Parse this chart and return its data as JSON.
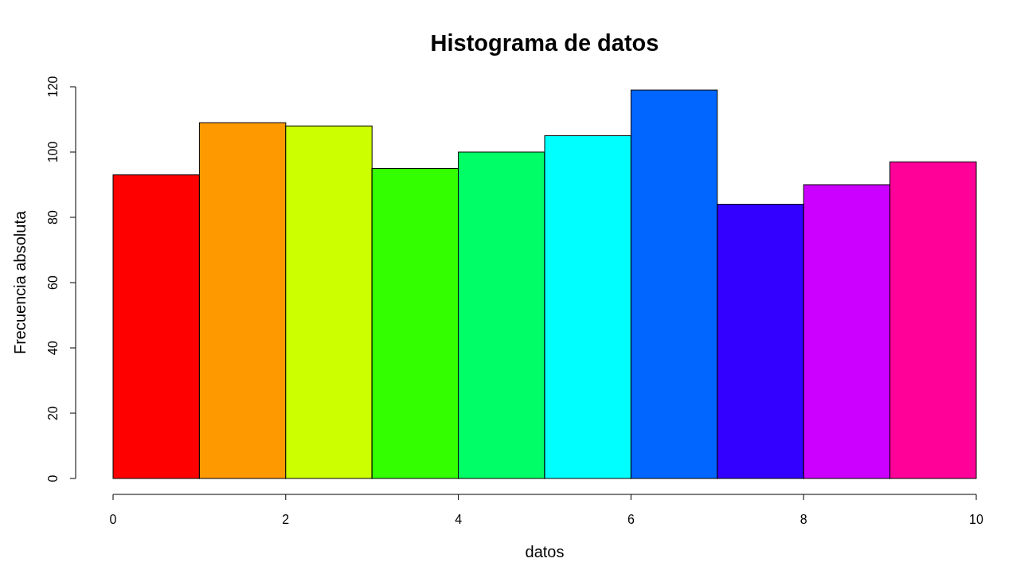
{
  "chart_data": {
    "type": "histogram",
    "title": "Histograma de datos",
    "xlabel": "datos",
    "ylabel": "Frecuencia absoluta",
    "bins": [
      0,
      1,
      2,
      3,
      4,
      5,
      6,
      7,
      8,
      9,
      10
    ],
    "values": [
      93,
      109,
      108,
      95,
      100,
      105,
      119,
      84,
      90,
      97
    ],
    "colors": [
      "#ff0000",
      "#ff9900",
      "#ccff00",
      "#33ff00",
      "#00ff66",
      "#00ffff",
      "#0066ff",
      "#3300ff",
      "#cc00ff",
      "#ff0099"
    ],
    "xlim": [
      0,
      10
    ],
    "xticks": [
      0,
      2,
      4,
      6,
      8,
      10
    ],
    "ylim": [
      0,
      120
    ],
    "yticks": [
      0,
      20,
      40,
      60,
      80,
      100,
      120
    ],
    "grid": false
  }
}
